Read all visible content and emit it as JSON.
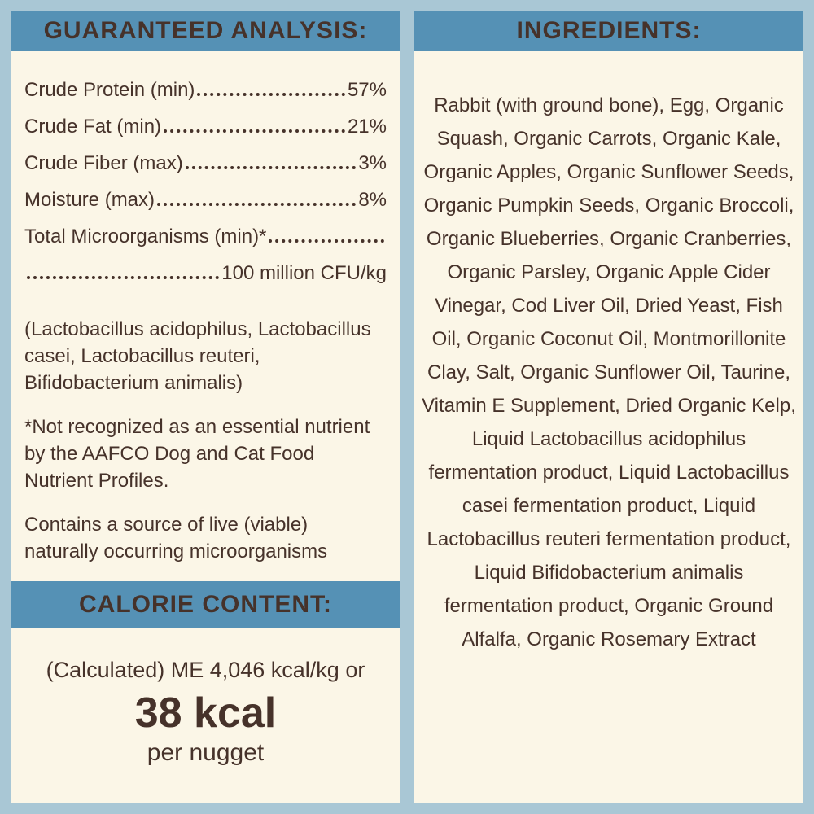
{
  "colors": {
    "border": "#a9c7d5",
    "banner": "#5591b5",
    "panel": "#fbf6e7",
    "text": "#46322a"
  },
  "guaranteed_analysis": {
    "title": "GUARANTEED ANALYSIS:",
    "rows": [
      {
        "label": "Crude Protein (min)",
        "value": "57%"
      },
      {
        "label": "Crude Fat (min)",
        "value": "21%"
      },
      {
        "label": "Crude Fiber (max)",
        "value": "3%"
      },
      {
        "label": "Moisture (max)",
        "value": "8%"
      }
    ],
    "microorganisms_label": "Total Microorganisms (min)*",
    "microorganisms_value": "100 million CFU/kg",
    "species_note": "(Lactobacillus acidophilus, Lactobacillus casei, Lactobacillus reuteri, Bifidobacterium animalis)",
    "footnote": "*Not recognized as an essential nutrient by the AAFCO Dog and Cat Food Nutrient Profiles.",
    "viable_note": "Contains a source of live (viable) naturally occurring microorganisms"
  },
  "calorie_content": {
    "title": "CALORIE CONTENT:",
    "line1": "(Calculated) ME 4,046 kcal/kg or",
    "value": "38 kcal",
    "unit": "per nugget"
  },
  "ingredients": {
    "title": "INGREDIENTS:",
    "text": "Rabbit (with ground bone), Egg, Organic Squash, Organic Carrots, Organic Kale, Organic Apples, Organic Sunflower Seeds, Organic Pumpkin Seeds, Organic Broccoli, Organic Blueberries, Organic Cranberries, Organic Parsley, Organic Apple Cider Vinegar, Cod Liver Oil, Dried Yeast, Fish Oil, Organic Coconut Oil, Montmorillonite Clay, Salt, Organic Sunflower Oil, Taurine, Vitamin E Supplement, Dried Organic Kelp, Liquid Lactobacillus acidophilus fermentation product, Liquid Lactobacillus casei fermentation product, Liquid Lactobacillus reuteri fermentation product, Liquid Bifidobacterium animalis fermentation product, Organic Ground Alfalfa, Organic Rosemary Extract"
  }
}
